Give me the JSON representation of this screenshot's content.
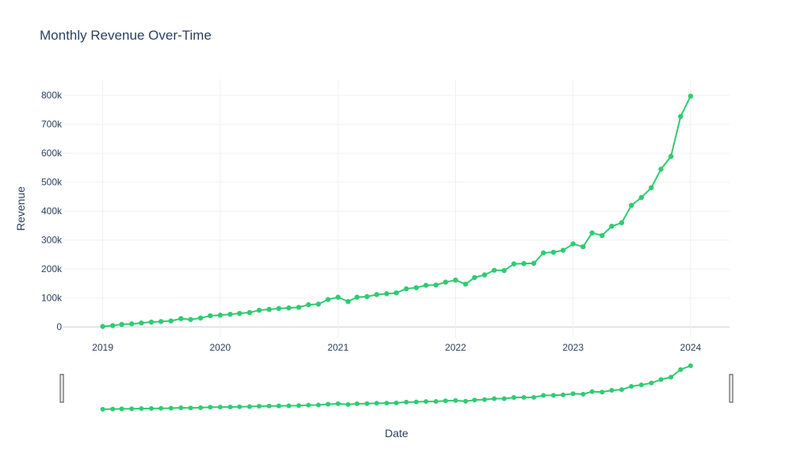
{
  "chart_data": {
    "type": "line",
    "title": "Monthly Revenue Over-Time",
    "xlabel": "Date",
    "ylabel": "Revenue",
    "x_ticks": [
      "2019",
      "2020",
      "2021",
      "2022",
      "2023",
      "2024"
    ],
    "y_ticks": [
      "0",
      "100k",
      "200k",
      "300k",
      "400k",
      "500k",
      "600k",
      "700k",
      "800k"
    ],
    "y_tick_values": [
      0,
      100000,
      200000,
      300000,
      400000,
      500000,
      600000,
      700000,
      800000
    ],
    "xlim": [
      "2018-09-01",
      "2024-05-01"
    ],
    "ylim": [
      -35000,
      855000
    ],
    "line_color": "#2ecc71",
    "grid": true,
    "rangeslider": true,
    "series": [
      {
        "x": [
          "2019-01-01",
          "2019-02-01",
          "2019-03-01",
          "2019-04-01",
          "2019-05-01",
          "2019-06-01",
          "2019-07-01",
          "2019-08-01",
          "2019-09-01",
          "2019-10-01",
          "2019-11-01",
          "2019-12-01",
          "2020-01-01",
          "2020-02-01",
          "2020-03-01",
          "2020-04-01",
          "2020-05-01",
          "2020-06-01",
          "2020-07-01",
          "2020-08-01",
          "2020-09-01",
          "2020-10-01",
          "2020-11-01",
          "2020-12-01",
          "2021-01-01",
          "2021-02-01",
          "2021-03-01",
          "2021-04-01",
          "2021-05-01",
          "2021-06-01",
          "2021-07-01",
          "2021-08-01",
          "2021-09-01",
          "2021-10-01",
          "2021-11-01",
          "2021-12-01",
          "2022-01-01",
          "2022-02-01",
          "2022-03-01",
          "2022-04-01",
          "2022-05-01",
          "2022-06-01",
          "2022-07-01",
          "2022-08-01",
          "2022-09-01",
          "2022-10-01",
          "2022-11-01",
          "2022-12-01",
          "2023-01-01",
          "2023-02-01",
          "2023-03-01",
          "2023-04-01",
          "2023-05-01",
          "2023-06-01",
          "2023-07-01",
          "2023-08-01",
          "2023-09-01",
          "2023-10-01",
          "2023-11-01",
          "2023-12-01",
          "2024-01-01"
        ],
        "values": [
          2000,
          5000,
          9000,
          11000,
          14000,
          17000,
          19000,
          21000,
          29000,
          26000,
          31000,
          39000,
          41000,
          44000,
          47000,
          50000,
          58000,
          61000,
          64000,
          66000,
          68000,
          77000,
          79000,
          95000,
          103000,
          88000,
          103000,
          105000,
          112000,
          115000,
          118000,
          132000,
          136000,
          144000,
          145000,
          155000,
          162000,
          148000,
          171000,
          180000,
          196000,
          195000,
          218000,
          219000,
          220000,
          256000,
          258000,
          265000,
          287000,
          277000,
          325000,
          316000,
          348000,
          360000,
          420000,
          447000,
          481000,
          545000,
          589000,
          727000,
          797000
        ]
      }
    ]
  }
}
